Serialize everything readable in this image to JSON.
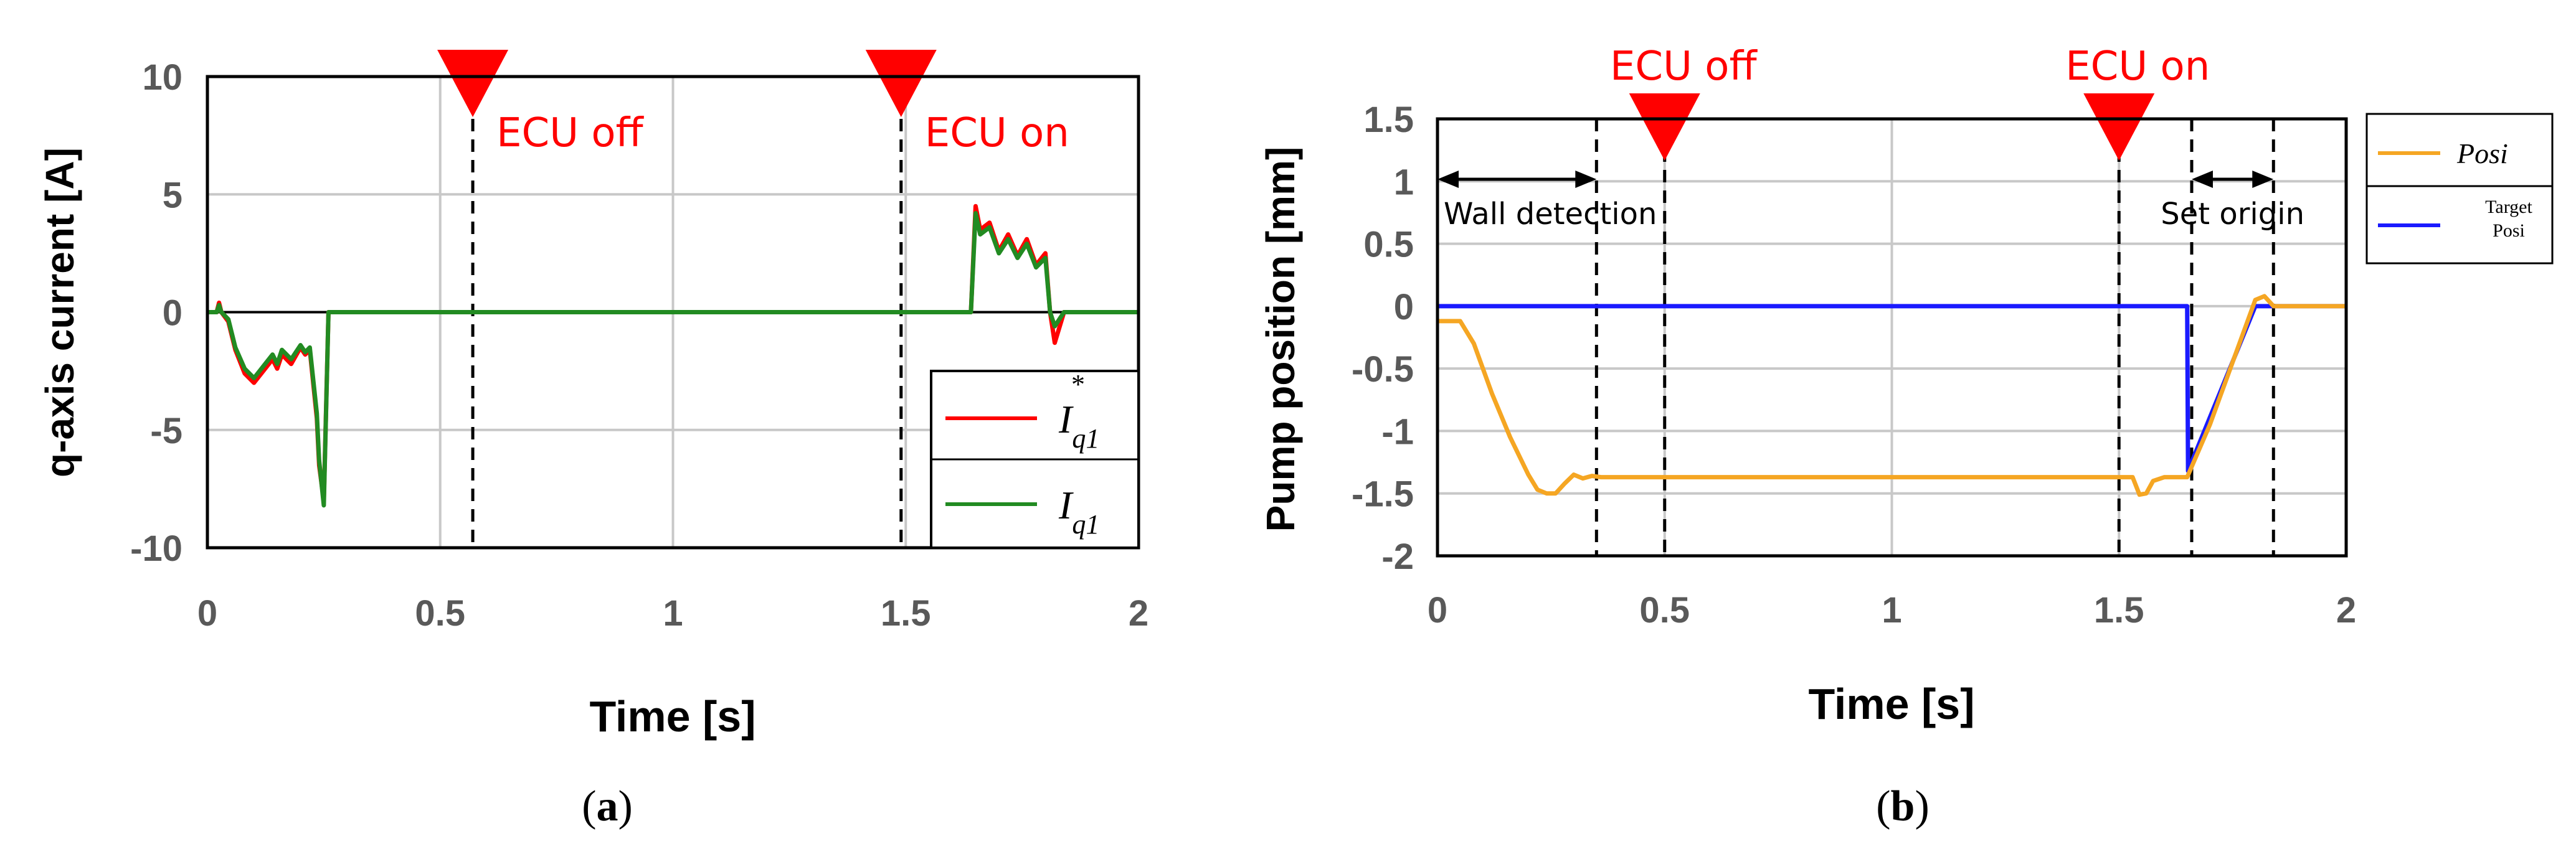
{
  "chart_data": [
    {
      "type": "line",
      "xlabel": "Time [s]",
      "ylabel": "q-axis current [A]",
      "xlim": [
        0,
        2
      ],
      "ylim": [
        -10,
        10
      ],
      "xticks": [
        0,
        0.5,
        1,
        1.5,
        2
      ],
      "yticks": [
        -10,
        -5,
        0,
        5,
        10
      ],
      "x_tick_labels": [
        "0",
        "0.5",
        "1",
        "1.5",
        "2"
      ],
      "y_tick_labels": [
        "-10",
        "-5",
        "0",
        "5",
        "10"
      ],
      "grid": true,
      "legend_placement": "bottom-right",
      "caption": "(a)",
      "events": [
        {
          "label": "ECU off",
          "x": 0.57
        },
        {
          "label": "ECU on",
          "x": 1.49
        }
      ],
      "series": [
        {
          "name": "I*q1",
          "color": "#ff0000",
          "x": [
            0,
            0.02,
            0.025,
            0.03,
            0.045,
            0.06,
            0.08,
            0.1,
            0.12,
            0.14,
            0.15,
            0.16,
            0.18,
            0.2,
            0.21,
            0.22,
            0.235,
            0.24,
            0.25,
            0.26,
            0.28,
            0.3,
            0.4,
            0.5,
            0.6,
            0.8,
            1.0,
            1.2,
            1.4,
            1.5,
            1.6,
            1.64,
            1.65,
            1.66,
            1.68,
            1.7,
            1.72,
            1.74,
            1.76,
            1.78,
            1.8,
            1.81,
            1.82,
            1.84,
            2.0
          ],
          "values": [
            0,
            0,
            0.4,
            0,
            -0.4,
            -1.6,
            -2.6,
            -3.0,
            -2.5,
            -2.0,
            -2.4,
            -1.8,
            -2.2,
            -1.5,
            -1.8,
            -1.6,
            -4.5,
            -6.5,
            -8.0,
            0,
            0,
            0,
            0,
            0,
            0,
            0,
            0,
            0,
            0,
            0,
            0,
            0,
            4.5,
            3.5,
            3.8,
            2.6,
            3.3,
            2.4,
            3.1,
            2.0,
            2.5,
            0,
            -1.3,
            0,
            0
          ]
        },
        {
          "name": "Iq1",
          "color": "#228b22",
          "x": [
            0,
            0.02,
            0.025,
            0.03,
            0.045,
            0.06,
            0.08,
            0.1,
            0.12,
            0.14,
            0.15,
            0.16,
            0.18,
            0.2,
            0.21,
            0.22,
            0.235,
            0.24,
            0.25,
            0.26,
            0.28,
            0.3,
            0.4,
            0.5,
            0.6,
            0.8,
            1.0,
            1.2,
            1.4,
            1.5,
            1.6,
            1.64,
            1.65,
            1.66,
            1.68,
            1.7,
            1.72,
            1.74,
            1.76,
            1.78,
            1.8,
            1.81,
            1.82,
            1.84,
            2.0
          ],
          "values": [
            0,
            0,
            0.3,
            0,
            -0.3,
            -1.5,
            -2.4,
            -2.8,
            -2.3,
            -1.8,
            -2.2,
            -1.6,
            -2.0,
            -1.4,
            -1.7,
            -1.5,
            -4.3,
            -6.3,
            -8.2,
            0,
            0,
            0,
            0,
            0,
            0,
            0,
            0,
            0,
            0,
            0,
            0,
            0,
            4.2,
            3.3,
            3.6,
            2.5,
            3.1,
            2.3,
            2.9,
            1.9,
            2.3,
            0,
            -0.6,
            0,
            0
          ]
        }
      ]
    },
    {
      "type": "line",
      "xlabel": "Time [s]",
      "ylabel": "Pump position [mm]",
      "xlim": [
        0,
        2
      ],
      "ylim": [
        -2,
        1.5
      ],
      "xticks": [
        0,
        0.5,
        1,
        1.5,
        2
      ],
      "yticks": [
        -2,
        -1.5,
        -1,
        -0.5,
        0,
        0.5,
        1,
        1.5
      ],
      "x_tick_labels": [
        "0",
        "0.5",
        "1",
        "1.5",
        "2"
      ],
      "y_tick_labels": [
        "-2",
        "-1.5",
        "-1",
        "-0.5",
        "0",
        "0.5",
        "1",
        "1.5"
      ],
      "grid": true,
      "legend_placement": "outside-right",
      "caption": "(b)",
      "events": [
        {
          "label": "ECU off",
          "x": 0.5
        },
        {
          "label": "ECU on",
          "x": 1.5
        }
      ],
      "annotations": [
        {
          "label": "Wall detection",
          "x_start": 0,
          "x_end": 0.35
        },
        {
          "label": "Set origin",
          "x_start": 1.66,
          "x_end": 1.84
        }
      ],
      "series": [
        {
          "name": "Posi",
          "color": "#f5a623",
          "x": [
            0,
            0.05,
            0.08,
            0.12,
            0.16,
            0.2,
            0.22,
            0.24,
            0.26,
            0.28,
            0.3,
            0.32,
            0.34,
            0.36,
            0.5,
            1.0,
            1.5,
            1.53,
            1.545,
            1.56,
            1.575,
            1.6,
            1.65,
            1.7,
            1.75,
            1.8,
            1.82,
            1.84,
            2.0
          ],
          "values": [
            -0.12,
            -0.12,
            -0.3,
            -0.7,
            -1.05,
            -1.35,
            -1.47,
            -1.5,
            -1.5,
            -1.42,
            -1.35,
            -1.38,
            -1.36,
            -1.37,
            -1.37,
            -1.37,
            -1.37,
            -1.37,
            -1.51,
            -1.5,
            -1.4,
            -1.37,
            -1.37,
            -0.95,
            -0.45,
            0.05,
            0.08,
            0.0,
            0.0
          ]
        },
        {
          "name": "Target Posi",
          "color": "#1a1aff",
          "x": [
            0,
            1.65,
            1.652,
            1.8,
            2.0
          ],
          "values": [
            0,
            0,
            -1.32,
            0,
            0
          ]
        }
      ]
    }
  ],
  "left": {
    "title": "",
    "ylabel": "q-axis current [A]",
    "xlabel": "Time [s]",
    "caption_open": "(",
    "caption_letter": "a",
    "caption_close": ")",
    "x_ticks": [
      "0",
      "0.5",
      "1",
      "1.5",
      "2"
    ],
    "y_ticks": [
      "-10",
      "-5",
      "0",
      "5",
      "10"
    ],
    "ecu_off": "ECU off",
    "ecu_on": "ECU on",
    "legend": {
      "ref_main": "I",
      "ref_sup": "*",
      "ref_sub": "q1",
      "meas_main": "I",
      "meas_sub": "q1"
    }
  },
  "right": {
    "title": "",
    "ylabel": "Pump position [mm]",
    "xlabel": "Time [s]",
    "caption_open": "(",
    "caption_letter": "b",
    "caption_close": ")",
    "x_ticks": [
      "0",
      "0.5",
      "1",
      "1.5",
      "2"
    ],
    "y_ticks": [
      "-2",
      "-1.5",
      "-1",
      "-0.5",
      "0",
      "0.5",
      "1",
      "1.5"
    ],
    "ecu_off": "ECU off",
    "ecu_on": "ECU on",
    "wall_detection": "Wall detection",
    "set_origin": "Set origin",
    "legend": {
      "posi": "Posi",
      "target_line1": "Target",
      "target_line2": "Posi"
    }
  }
}
